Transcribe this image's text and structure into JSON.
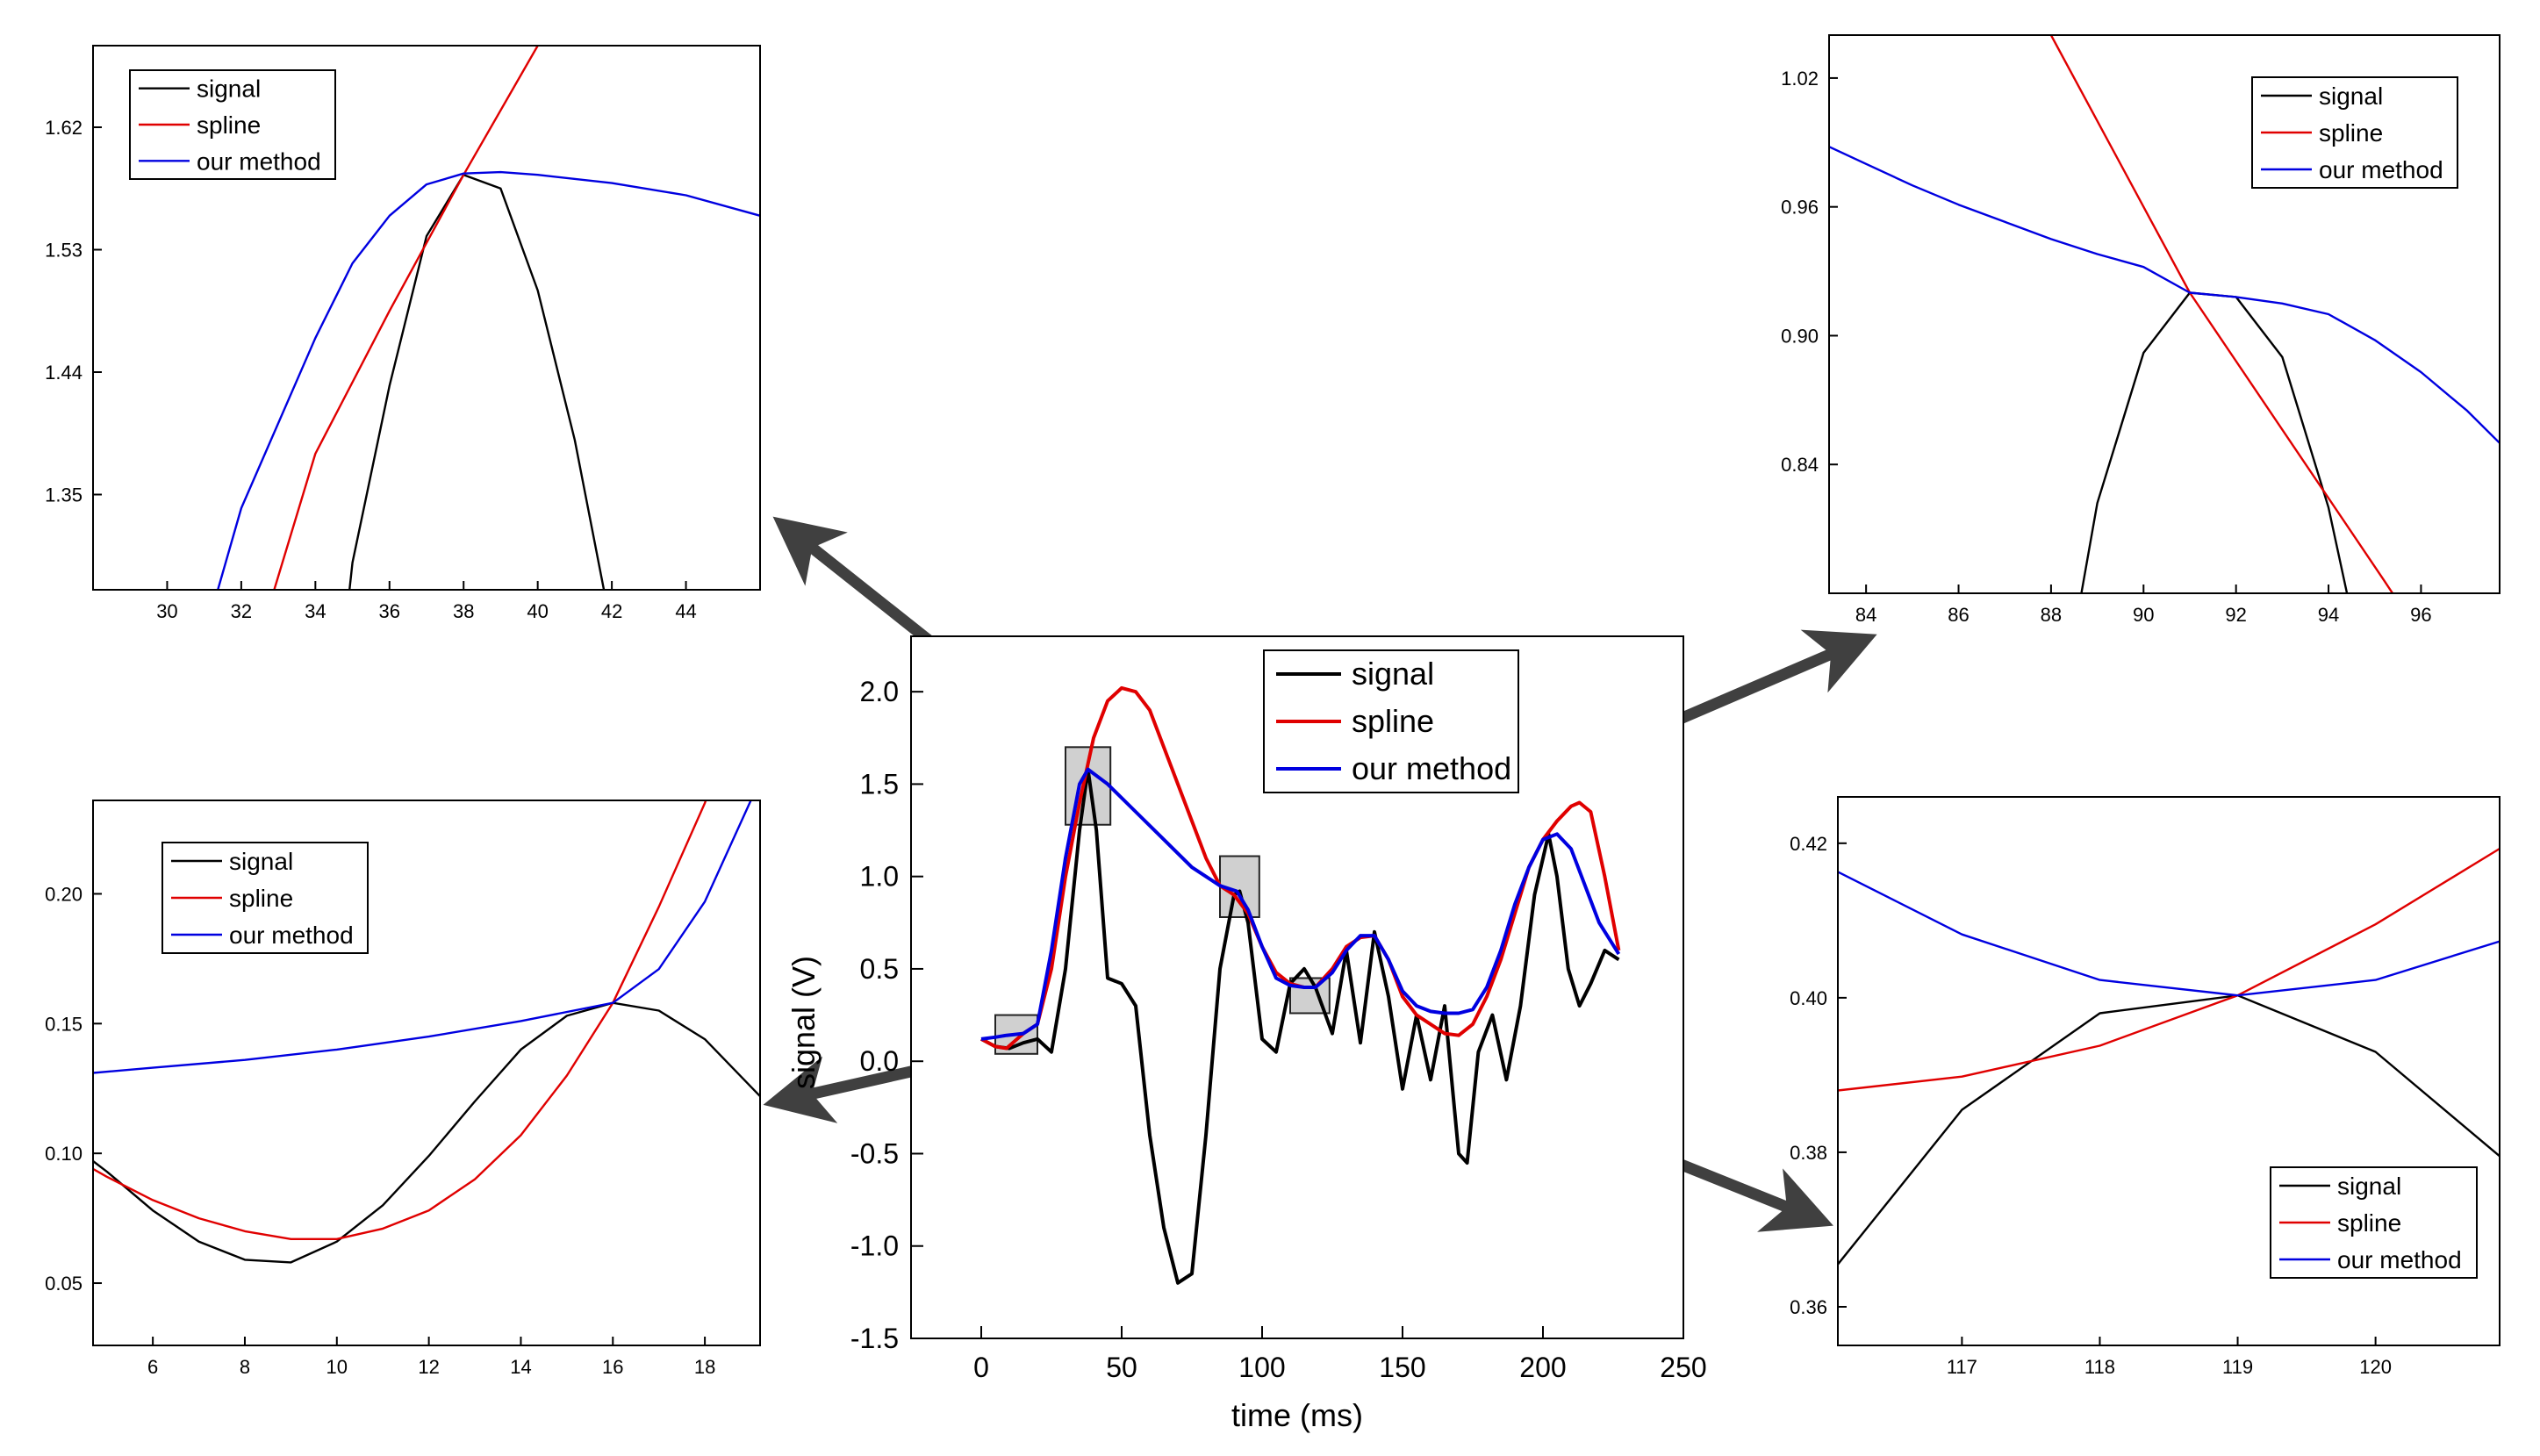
{
  "figure": {
    "accent_colors": {
      "signal": "#000000",
      "spline": "#e00000",
      "our_method": "#0000e0",
      "arrow": "#404040",
      "zoom_box": "#d0d0d0"
    }
  },
  "chart_data": [
    {
      "id": "main",
      "type": "line",
      "title": "",
      "xlabel": "time (ms)",
      "ylabel": "signal (V)",
      "xlim": [
        -25,
        250
      ],
      "ylim": [
        -1.5,
        2.3
      ],
      "xticks": [
        0,
        50,
        100,
        150,
        200,
        250
      ],
      "yticks": [
        -1.5,
        -1.0,
        -0.5,
        0.0,
        0.5,
        1.0,
        1.5,
        2.0
      ],
      "xtick_labels": [
        "0",
        "50",
        "100",
        "150",
        "200",
        "250"
      ],
      "ytick_labels": [
        "-1.5",
        "-1.0",
        "-0.5",
        "0.0",
        "0.5",
        "1.0",
        "1.5",
        "2.0"
      ],
      "legend": [
        "signal",
        "spline",
        "our method"
      ],
      "legend_position": "top-right",
      "zoom_boxes": [
        {
          "x": [
            5,
            20
          ],
          "y": [
            0.04,
            0.25
          ]
        },
        {
          "x": [
            30,
            46
          ],
          "y": [
            1.28,
            1.7
          ]
        },
        {
          "x": [
            85,
            99
          ],
          "y": [
            0.78,
            1.11
          ]
        },
        {
          "x": [
            110,
            124
          ],
          "y": [
            0.26,
            0.45
          ]
        }
      ],
      "series": [
        {
          "name": "signal",
          "x": [
            0,
            5,
            10,
            15,
            20,
            25,
            30,
            35,
            38,
            41,
            45,
            50,
            55,
            60,
            65,
            70,
            75,
            80,
            85,
            90,
            92,
            95,
            100,
            105,
            110,
            115,
            119,
            125,
            130,
            135,
            140,
            145,
            150,
            155,
            160,
            165,
            170,
            173,
            177,
            182,
            187,
            192,
            197,
            202,
            205,
            209,
            213,
            217,
            222,
            227
          ],
          "y": [
            0.12,
            0.08,
            0.07,
            0.1,
            0.12,
            0.05,
            0.5,
            1.25,
            1.58,
            1.25,
            0.45,
            0.42,
            0.3,
            -0.4,
            -0.9,
            -1.2,
            -1.15,
            -0.4,
            0.5,
            0.9,
            0.92,
            0.75,
            0.12,
            0.05,
            0.42,
            0.5,
            0.4,
            0.15,
            0.6,
            0.1,
            0.7,
            0.35,
            -0.15,
            0.25,
            -0.1,
            0.3,
            -0.5,
            -0.55,
            0.05,
            0.25,
            -0.1,
            0.3,
            0.9,
            1.23,
            1.0,
            0.5,
            0.3,
            0.42,
            0.6,
            0.55
          ]
        },
        {
          "name": "spline",
          "x": [
            0,
            5,
            9,
            15,
            20,
            25,
            30,
            35,
            40,
            45,
            50,
            55,
            60,
            65,
            70,
            75,
            80,
            85,
            90,
            95,
            100,
            105,
            110,
            115,
            119,
            125,
            130,
            135,
            140,
            145,
            150,
            155,
            160,
            165,
            170,
            175,
            180,
            185,
            190,
            195,
            200,
            205,
            210,
            213,
            217,
            222,
            227
          ],
          "y": [
            0.12,
            0.08,
            0.07,
            0.15,
            0.2,
            0.5,
            1.0,
            1.4,
            1.75,
            1.95,
            2.02,
            2.0,
            1.9,
            1.7,
            1.5,
            1.3,
            1.1,
            0.95,
            0.9,
            0.8,
            0.62,
            0.48,
            0.42,
            0.4,
            0.4,
            0.5,
            0.62,
            0.67,
            0.68,
            0.55,
            0.35,
            0.25,
            0.2,
            0.15,
            0.14,
            0.2,
            0.35,
            0.55,
            0.8,
            1.05,
            1.2,
            1.3,
            1.38,
            1.4,
            1.35,
            1.0,
            0.6
          ]
        },
        {
          "name": "our method",
          "x": [
            0,
            5,
            9,
            15,
            20,
            25,
            30,
            35,
            38,
            45,
            55,
            65,
            75,
            85,
            91,
            95,
            100,
            105,
            110,
            115,
            119,
            125,
            130,
            135,
            140,
            145,
            150,
            155,
            160,
            165,
            170,
            175,
            180,
            185,
            190,
            195,
            200,
            205,
            210,
            215,
            220,
            227
          ],
          "y": [
            0.12,
            0.13,
            0.14,
            0.15,
            0.2,
            0.6,
            1.1,
            1.5,
            1.58,
            1.5,
            1.35,
            1.2,
            1.05,
            0.95,
            0.92,
            0.82,
            0.62,
            0.45,
            0.41,
            0.4,
            0.4,
            0.48,
            0.6,
            0.68,
            0.68,
            0.55,
            0.38,
            0.3,
            0.27,
            0.26,
            0.26,
            0.28,
            0.4,
            0.6,
            0.85,
            1.05,
            1.2,
            1.23,
            1.15,
            0.95,
            0.75,
            0.58
          ]
        }
      ]
    },
    {
      "id": "zoom-top-left",
      "type": "line",
      "xlim": [
        28,
        46
      ],
      "ylim": [
        1.28,
        1.68
      ],
      "xticks": [
        30,
        32,
        34,
        36,
        38,
        40,
        42,
        44
      ],
      "yticks": [
        1.35,
        1.44,
        1.53,
        1.62
      ],
      "xtick_labels": [
        "30",
        "32",
        "34",
        "36",
        "38",
        "40",
        "42",
        "44"
      ],
      "ytick_labels": [
        "1.35",
        "1.44",
        "1.53",
        "1.62"
      ],
      "legend": [
        "signal",
        "spline",
        "our method"
      ],
      "legend_position": "top-left",
      "series": [
        {
          "name": "signal",
          "x": [
            34,
            35,
            36,
            37,
            38,
            39,
            40,
            41,
            42,
            43
          ],
          "y": [
            1.05,
            1.3,
            1.43,
            1.54,
            1.585,
            1.575,
            1.5,
            1.39,
            1.25,
            1.1
          ]
        },
        {
          "name": "spline",
          "x": [
            32,
            34,
            36,
            38,
            40,
            42
          ],
          "y": [
            1.2,
            1.38,
            1.485,
            1.585,
            1.68,
            1.78
          ]
        },
        {
          "name": "our method",
          "x": [
            30,
            32,
            34,
            35,
            36,
            37,
            38,
            39,
            40,
            42,
            44,
            46
          ],
          "y": [
            1.15,
            1.34,
            1.465,
            1.52,
            1.555,
            1.578,
            1.586,
            1.587,
            1.585,
            1.579,
            1.57,
            1.555
          ]
        }
      ]
    },
    {
      "id": "zoom-top-right",
      "type": "line",
      "xlim": [
        83.2,
        97.7
      ],
      "ylim": [
        0.78,
        1.04
      ],
      "xticks": [
        84,
        86,
        88,
        90,
        92,
        94,
        96
      ],
      "yticks": [
        0.84,
        0.9,
        0.96,
        1.02
      ],
      "xtick_labels": [
        "84",
        "86",
        "88",
        "90",
        "92",
        "94",
        "96"
      ],
      "ytick_labels": [
        "0.84",
        "0.90",
        "0.96",
        "1.02"
      ],
      "legend": [
        "signal",
        "spline",
        "our method"
      ],
      "legend_position": "top-right",
      "series": [
        {
          "name": "signal",
          "x": [
            88,
            89,
            90,
            91,
            92,
            93,
            94,
            95
          ],
          "y": [
            0.7,
            0.822,
            0.892,
            0.92,
            0.918,
            0.89,
            0.82,
            0.72
          ]
        },
        {
          "name": "spline",
          "x": [
            88,
            91,
            95.2,
            96
          ],
          "y": [
            1.04,
            0.92,
            0.786,
            0.76
          ]
        },
        {
          "name": "our method",
          "x": [
            83,
            84,
            85,
            86,
            87,
            88,
            89,
            90,
            91,
            92,
            93,
            94,
            95,
            96,
            97,
            97.7
          ],
          "y": [
            0.99,
            0.98,
            0.97,
            0.961,
            0.953,
            0.945,
            0.938,
            0.932,
            0.92,
            0.918,
            0.915,
            0.91,
            0.898,
            0.883,
            0.865,
            0.85
          ]
        }
      ]
    },
    {
      "id": "zoom-bottom-left",
      "type": "line",
      "xlim": [
        4.7,
        19.2
      ],
      "ylim": [
        0.026,
        0.236
      ],
      "xticks": [
        6,
        8,
        10,
        12,
        14,
        16,
        18
      ],
      "yticks": [
        0.05,
        0.1,
        0.15,
        0.2
      ],
      "xtick_labels": [
        "6",
        "8",
        "10",
        "12",
        "14",
        "16",
        "18"
      ],
      "ytick_labels": [
        "0.05",
        "0.10",
        "0.15",
        "0.20"
      ],
      "legend": [
        "signal",
        "spline",
        "our method"
      ],
      "legend_position": "top-left",
      "series": [
        {
          "name": "signal",
          "x": [
            4.7,
            5,
            6,
            7,
            8,
            9,
            10,
            11,
            12,
            13,
            14,
            15,
            16,
            17,
            18,
            19.2
          ],
          "y": [
            0.097,
            0.093,
            0.078,
            0.066,
            0.059,
            0.058,
            0.066,
            0.08,
            0.099,
            0.12,
            0.14,
            0.153,
            0.158,
            0.155,
            0.144,
            0.122
          ]
        },
        {
          "name": "spline",
          "x": [
            4.7,
            5,
            6,
            7,
            8,
            9,
            10,
            11,
            12,
            13,
            14,
            15,
            16,
            17,
            18,
            18.1
          ],
          "y": [
            0.094,
            0.091,
            0.082,
            0.075,
            0.07,
            0.067,
            0.067,
            0.071,
            0.078,
            0.09,
            0.107,
            0.13,
            0.158,
            0.195,
            0.235,
            0.24
          ]
        },
        {
          "name": "our method",
          "x": [
            4.7,
            6,
            8,
            10,
            12,
            14,
            16,
            17,
            18,
            19,
            19.2
          ],
          "y": [
            0.131,
            0.133,
            0.136,
            0.14,
            0.145,
            0.151,
            0.158,
            0.171,
            0.197,
            0.236,
            0.245
          ]
        }
      ]
    },
    {
      "id": "zoom-bottom-right",
      "type": "line",
      "xlim": [
        116.1,
        120.9
      ],
      "ylim": [
        0.355,
        0.426
      ],
      "xticks": [
        117,
        118,
        119,
        120
      ],
      "yticks": [
        0.36,
        0.38,
        0.4,
        0.42
      ],
      "xtick_labels": [
        "117",
        "118",
        "119",
        "120"
      ],
      "ytick_labels": [
        "0.36",
        "0.38",
        "0.40",
        "0.42"
      ],
      "legend": [
        "signal",
        "spline",
        "our method"
      ],
      "legend_position": "bottom-right",
      "series": [
        {
          "name": "signal",
          "x": [
            116.1,
            117,
            118,
            119,
            120,
            120.9
          ],
          "y": [
            0.3655,
            0.3855,
            0.398,
            0.4003,
            0.393,
            0.3795
          ]
        },
        {
          "name": "spline",
          "x": [
            116.1,
            117,
            118,
            119,
            120,
            120.9
          ],
          "y": [
            0.388,
            0.3898,
            0.3938,
            0.4003,
            0.4095,
            0.4193
          ]
        },
        {
          "name": "our method",
          "x": [
            116.1,
            117,
            118,
            119,
            120,
            120.9
          ],
          "y": [
            0.4163,
            0.4082,
            0.4023,
            0.4003,
            0.4023,
            0.4073
          ]
        }
      ]
    }
  ]
}
